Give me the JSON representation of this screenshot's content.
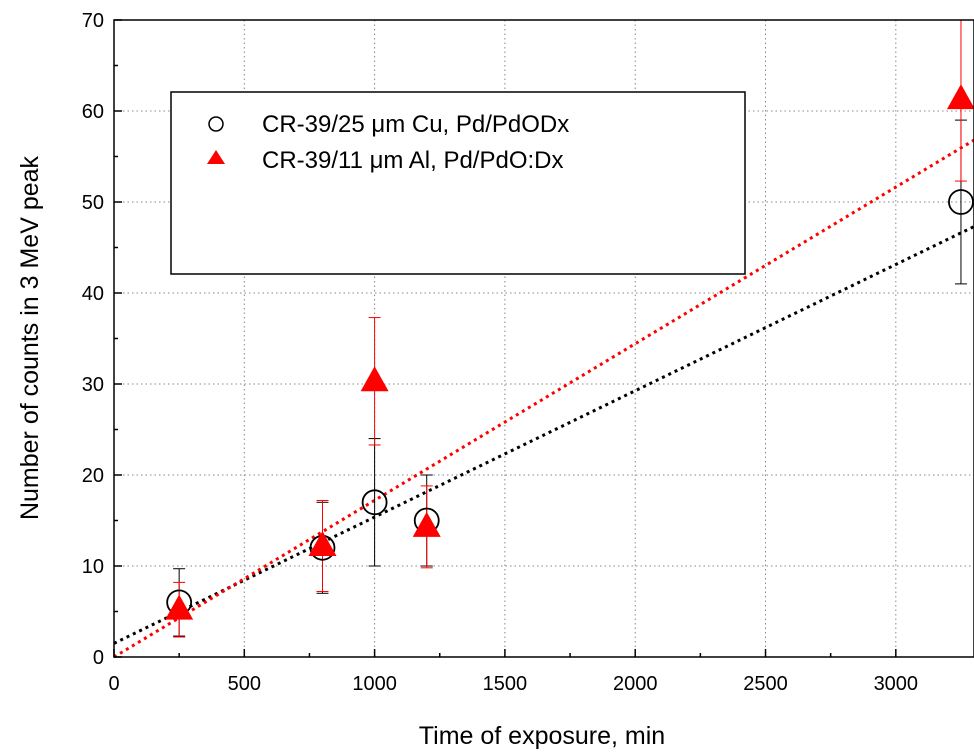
{
  "chart_data": {
    "type": "scatter",
    "xlabel": "Time of exposure, min",
    "ylabel": "Number of counts in 3 MeV peak",
    "xlim": [
      0,
      3300
    ],
    "ylim": [
      0,
      70
    ],
    "xticks": [
      0,
      500,
      1000,
      1500,
      2000,
      2500,
      3000
    ],
    "yticks": [
      0,
      10,
      20,
      30,
      40,
      50,
      60,
      70
    ],
    "grid": true,
    "legend_position": "top-left",
    "series": [
      {
        "name": "CR-39/25 μm Cu, Pd/PdODx",
        "marker": "open-circle",
        "color": "#000000",
        "points": [
          {
            "x": 250,
            "y": 6,
            "err_low": 3.7,
            "err_high": 3.7
          },
          {
            "x": 800,
            "y": 12,
            "err_low": 5,
            "err_high": 5
          },
          {
            "x": 1000,
            "y": 17,
            "err_low": 7,
            "err_high": 7
          },
          {
            "x": 1200,
            "y": 15,
            "err_low": 5,
            "err_high": 5
          },
          {
            "x": 3250,
            "y": 50,
            "err_low": 9,
            "err_high": 9
          }
        ],
        "fit": {
          "x": [
            0,
            3300
          ],
          "y": [
            1.5,
            47.3
          ],
          "color": "#000000"
        }
      },
      {
        "name": "CR-39/11 μm Al, Pd/PdO:Dx",
        "marker": "filled-triangle",
        "color": "#ff0000",
        "points": [
          {
            "x": 250,
            "y": 5.2,
            "err_low": 3,
            "err_high": 3
          },
          {
            "x": 800,
            "y": 12.2,
            "err_low": 5,
            "err_high": 5
          },
          {
            "x": 1000,
            "y": 30.3,
            "err_low": 7,
            "err_high": 7
          },
          {
            "x": 1200,
            "y": 14.3,
            "err_low": 4.5,
            "err_high": 4.5
          },
          {
            "x": 3250,
            "y": 61.3,
            "err_low": 9,
            "err_high": 9
          }
        ],
        "fit": {
          "x": [
            0,
            3300
          ],
          "y": [
            0,
            56.8
          ],
          "color": "#ff0000"
        }
      }
    ]
  }
}
